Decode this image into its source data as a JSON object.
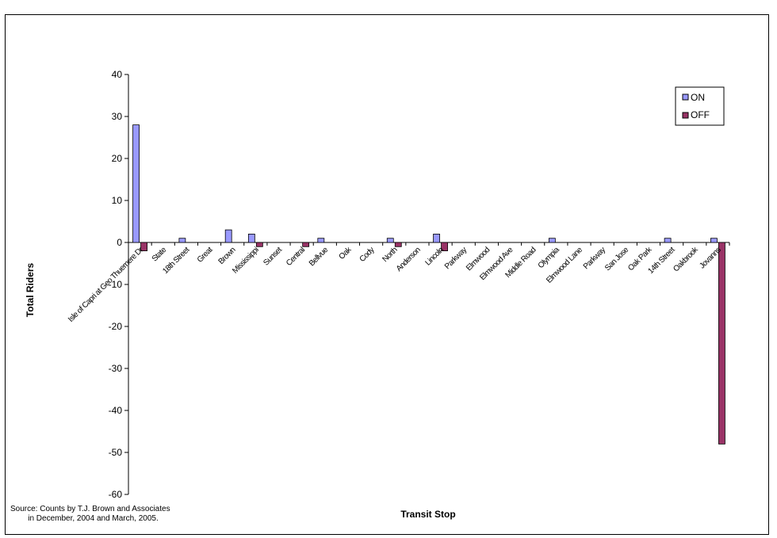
{
  "chart_data": {
    "type": "bar",
    "title": "",
    "xlabel": "Transit Stop",
    "ylabel": "Total Riders",
    "ylim": [
      -60,
      40
    ],
    "yticks": [
      40,
      30,
      20,
      10,
      0,
      -10,
      -20,
      -30,
      -40,
      -50,
      -60
    ],
    "grid": false,
    "legend_position": "top-right",
    "categories": [
      "Isle of Capri at Geo Thuernere Dr",
      "State",
      "18th Street",
      "Great",
      "Brown",
      "Mississippi",
      "Sunset",
      "Central",
      "Bellvue",
      "Oak",
      "Cody",
      "North",
      "Anderson",
      "Lincoln",
      "Parkway",
      "Elmwood",
      "Elmwood Ave",
      "Middle Road",
      "Olympia",
      "Elmwood Lane",
      "Parkway",
      "San Jose",
      "Oak Park",
      "14th Street",
      "Oakbrook",
      "Jovanns"
    ],
    "series": [
      {
        "name": "ON",
        "color": "#9999ff",
        "values": [
          28,
          0,
          1,
          0,
          3,
          2,
          0,
          0,
          1,
          0,
          0,
          1,
          0,
          2,
          0,
          0,
          0,
          0,
          1,
          0,
          0,
          0,
          0,
          1,
          0,
          1
        ]
      },
      {
        "name": "OFF",
        "color": "#993366",
        "values": [
          -2,
          0,
          0,
          0,
          0,
          -1,
          0,
          -1,
          0,
          0,
          0,
          -1,
          0,
          -2,
          0,
          0,
          0,
          0,
          0,
          0,
          0,
          0,
          0,
          0,
          0,
          -48
        ]
      }
    ],
    "source_note": "Source: Counts by T.J. Brown and Associates\n        in December, 2004 and March, 2005."
  }
}
